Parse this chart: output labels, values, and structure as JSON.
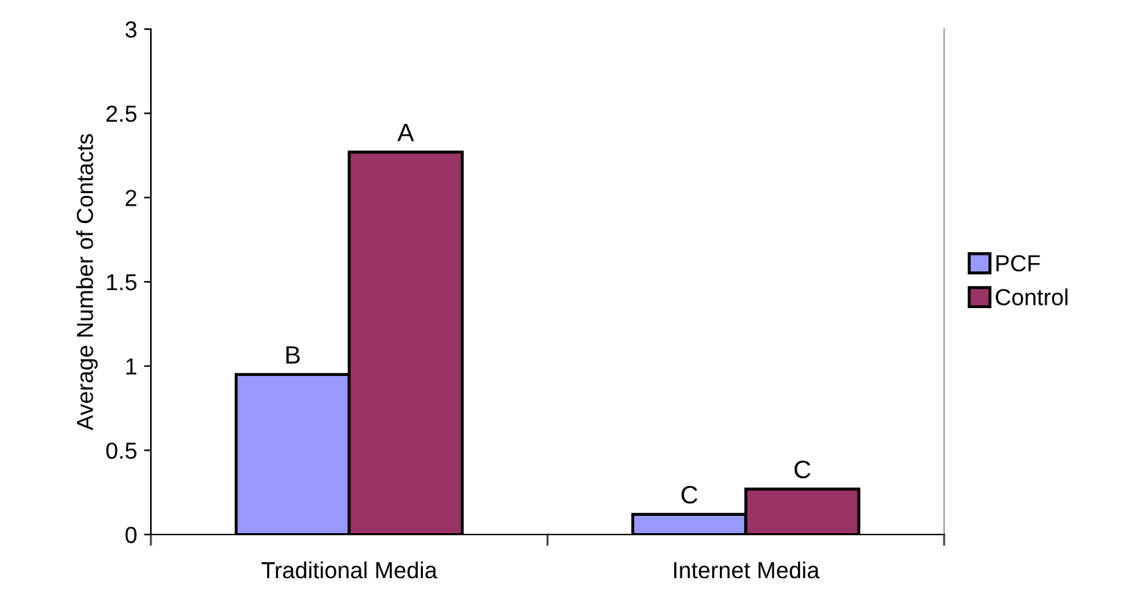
{
  "chart_data": {
    "type": "bar",
    "ylabel": "Average Number of Contacts",
    "categories": [
      "Traditional Media",
      "Internet Media"
    ],
    "series": [
      {
        "name": "PCF",
        "color": "#9999ff",
        "values": [
          0.95,
          0.12
        ]
      },
      {
        "name": "Control",
        "color": "#993366",
        "values": [
          2.27,
          0.27
        ]
      }
    ],
    "ylim": [
      0,
      3
    ],
    "yticks": [
      0,
      0.5,
      1,
      1.5,
      2,
      2.5,
      3
    ],
    "grid": false,
    "legend": "right",
    "annotations": [
      {
        "text": "B",
        "x": "Traditional Media",
        "y": 0.95
      },
      {
        "text": "A",
        "x": "Traditional Media",
        "y": 2.27
      },
      {
        "text": "C",
        "x": "Internet Media",
        "y": 0.12
      },
      {
        "text": "C",
        "x": "Internet Media",
        "y": 0.27
      }
    ]
  }
}
